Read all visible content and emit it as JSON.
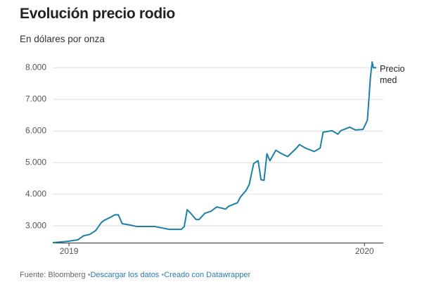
{
  "chart_data": {
    "type": "line",
    "title": "Evolución precio rodio",
    "subtitle": "En dólares por onza",
    "x": [
      2018.945,
      2018.993,
      2019.03,
      2019.05,
      2019.07,
      2019.09,
      2019.11,
      2019.12,
      2019.14,
      2019.155,
      2019.167,
      2019.18,
      2019.21,
      2019.23,
      2019.29,
      2019.34,
      2019.38,
      2019.39,
      2019.4,
      2019.41,
      2019.43,
      2019.44,
      2019.46,
      2019.48,
      2019.5,
      2019.53,
      2019.54,
      2019.57,
      2019.58,
      2019.6,
      2019.61,
      2019.625,
      2019.64,
      2019.65,
      2019.66,
      2019.67,
      2019.68,
      2019.7,
      2019.72,
      2019.74,
      2019.77,
      2019.78,
      2019.8,
      2019.83,
      2019.85,
      2019.86,
      2019.89,
      2019.91,
      2019.92,
      2019.95,
      2019.97,
      2019.995,
      2020.01,
      2020.02,
      2020.026,
      2020.03,
      2020.04
    ],
    "series": [
      {
        "name": "Precio med",
        "color": "#1d7fa6",
        "values": [
          2470,
          2510,
          2560,
          2690,
          2730,
          2850,
          3110,
          3180,
          3270,
          3350,
          3350,
          3070,
          3020,
          2980,
          2980,
          2890,
          2890,
          2980,
          3510,
          3420,
          3200,
          3200,
          3400,
          3460,
          3600,
          3530,
          3620,
          3730,
          3910,
          4130,
          4310,
          4970,
          5060,
          4460,
          4440,
          5280,
          5060,
          5390,
          5280,
          5190,
          5460,
          5570,
          5460,
          5350,
          5460,
          5960,
          6010,
          5900,
          6010,
          6120,
          6030,
          6050,
          6340,
          7670,
          8180,
          8000,
          8000
        ]
      }
    ],
    "xlim": [
      2018.945,
      2020.04
    ],
    "xticks": [
      2019,
      2020
    ],
    "ylim": [
      2470,
      8250
    ],
    "yticks": [
      {
        "value": 3000,
        "label": "3.000"
      },
      {
        "value": 4000,
        "label": "4.000"
      },
      {
        "value": 5000,
        "label": "5.000"
      },
      {
        "value": 6000,
        "label": "6.000"
      },
      {
        "value": 7000,
        "label": "7.000"
      },
      {
        "value": 8000,
        "label": "8.000"
      }
    ],
    "grid": true
  },
  "footer": {
    "source": "Fuente: Bloomberg",
    "links": [
      "Descargar los datos",
      "Creado con Datawrapper"
    ]
  }
}
